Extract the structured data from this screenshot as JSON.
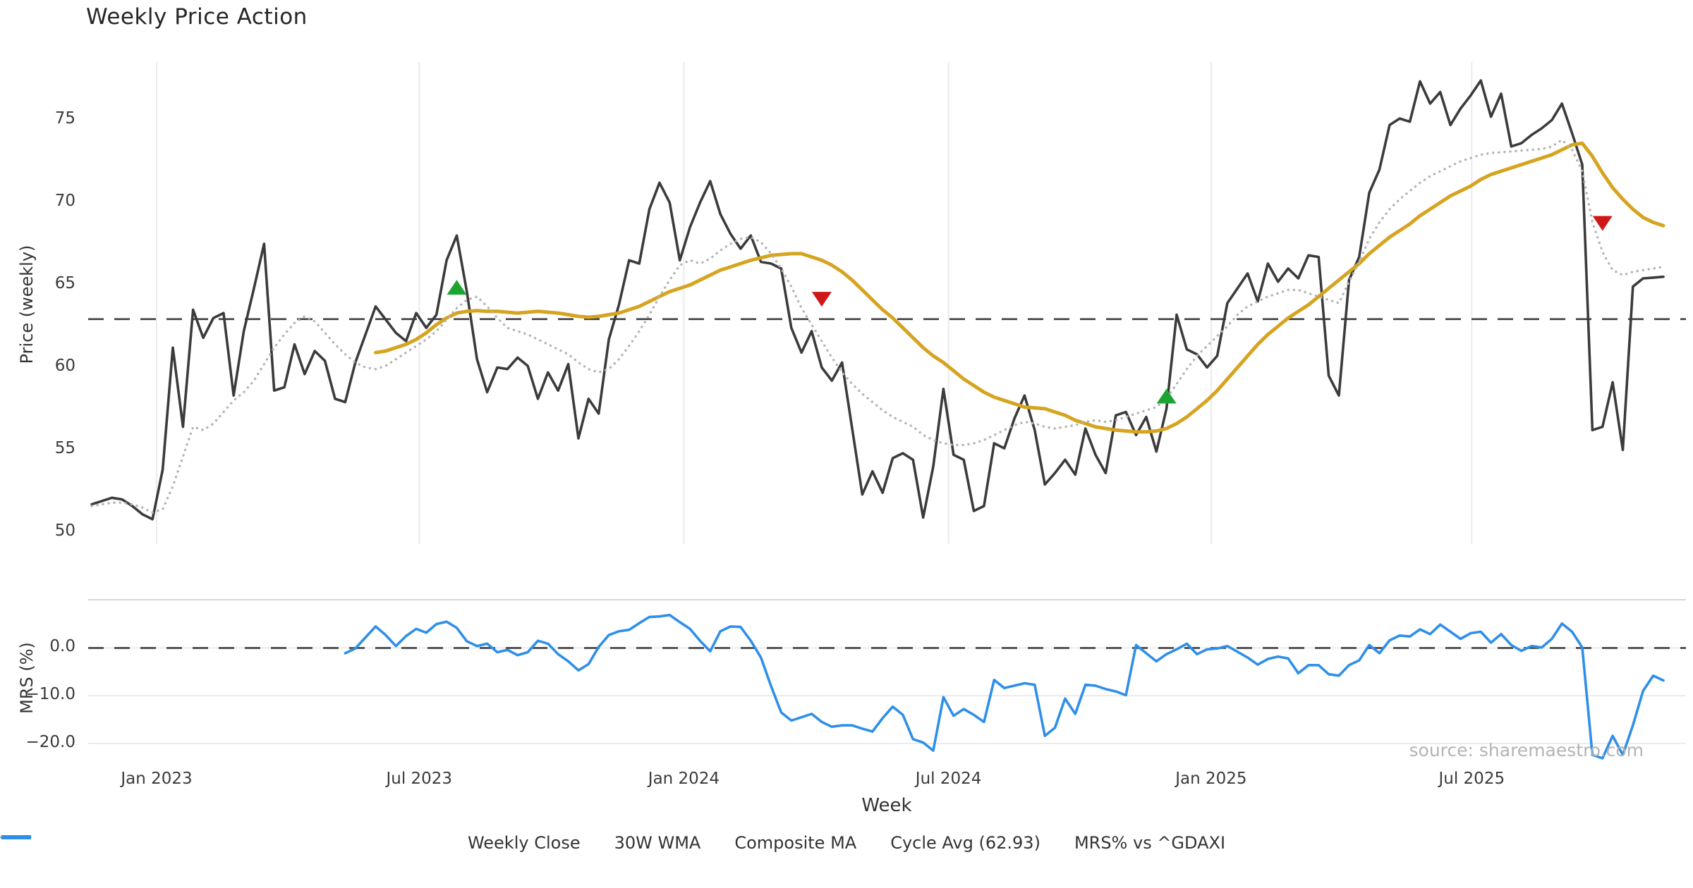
{
  "title": "Weekly Price Action",
  "source_text": "source: sharemaestro.com",
  "colors": {
    "weekly_close": "#3b3b3b",
    "wma_30w": "#d6a420",
    "composite_ma": "#b3b3b3",
    "cycle_avg": "#3f3f3f",
    "mrs": "#2f8fe8",
    "buy_marker": "#1ca532",
    "sell_marker": "#cf1717",
    "gridline": "#ebebeb",
    "spine": "#c9c9c9",
    "tick_text": "#3a3a3a"
  },
  "chart_data": {
    "type": "line",
    "title": "Weekly Price Action",
    "xlabel": "Week",
    "ylabel_top": "Price (weekly)",
    "ylabel_bottom": "MRS (%)",
    "grid": "vertical-top-panel, horizontal-bottom-panel",
    "legend_position": "bottom-center",
    "cycle_avg_value": 62.93,
    "top_panel": {
      "ylim": [
        49.5,
        78.5
      ],
      "yticks": [
        50,
        55,
        60,
        65,
        70,
        75
      ]
    },
    "bottom_panel": {
      "ylim": [
        -23.4,
        10.1
      ],
      "yticks": [
        0,
        -10,
        -20
      ],
      "ytick_labels": [
        "0.0",
        "−10.0",
        "−20.0"
      ],
      "zero_line": 0
    },
    "x_ticks": [
      {
        "week": 6.4,
        "label": "Jan 2023"
      },
      {
        "week": 32.3,
        "label": "Jul 2023"
      },
      {
        "week": 58.4,
        "label": "Jan 2024"
      },
      {
        "week": 84.5,
        "label": "Jul 2024"
      },
      {
        "week": 110.4,
        "label": "Jan 2025"
      },
      {
        "week": 136.1,
        "label": "Jul 2025"
      }
    ],
    "series": [
      {
        "name": "Weekly Close",
        "panel": "top",
        "style": "solid",
        "color_key": "weekly_close",
        "start_week": 0,
        "values": [
          51.7,
          51.9,
          52.1,
          52.0,
          51.6,
          51.1,
          50.8,
          53.8,
          61.2,
          56.4,
          63.5,
          61.8,
          63.0,
          63.3,
          58.3,
          62.2,
          64.8,
          67.5,
          58.6,
          58.8,
          61.4,
          59.6,
          61.0,
          60.4,
          58.1,
          57.9,
          60.3,
          62.0,
          63.7,
          62.9,
          62.1,
          61.6,
          63.3,
          62.4,
          63.2,
          66.5,
          68.0,
          64.6,
          60.5,
          58.5,
          60.0,
          59.9,
          60.6,
          60.1,
          58.1,
          59.7,
          58.6,
          60.2,
          55.7,
          58.1,
          57.2,
          61.7,
          63.8,
          66.5,
          66.3,
          69.6,
          71.2,
          70.0,
          66.5,
          68.5,
          70.0,
          71.3,
          69.3,
          68.1,
          67.2,
          68.0,
          66.4,
          66.3,
          66.0,
          62.4,
          60.9,
          62.2,
          60.0,
          59.2,
          60.3,
          56.3,
          52.3,
          53.7,
          52.4,
          54.5,
          54.8,
          54.4,
          50.9,
          54.0,
          58.7,
          54.7,
          54.4,
          51.3,
          51.6,
          55.4,
          55.1,
          56.9,
          58.3,
          56.2,
          52.9,
          53.6,
          54.4,
          53.5,
          56.3,
          54.7,
          53.6,
          57.1,
          57.3,
          55.9,
          57.0,
          54.9,
          57.5,
          63.2,
          61.1,
          60.8,
          60.0,
          60.7,
          63.9,
          64.8,
          65.7,
          64.0,
          66.3,
          65.2,
          66.0,
          65.4,
          66.8,
          66.7,
          59.5,
          58.3,
          65.3,
          66.7,
          70.6,
          72.0,
          74.7,
          75.1,
          74.9,
          77.35,
          76.0,
          76.7,
          74.7,
          75.7,
          76.5,
          77.4,
          75.2,
          76.6,
          73.4,
          73.6,
          74.1,
          74.5,
          75.0,
          76.0,
          74.2,
          72.3,
          56.2,
          56.4,
          59.1,
          55.0,
          64.9,
          65.4,
          65.45,
          65.5
        ]
      },
      {
        "name": "30W WMA",
        "panel": "top",
        "style": "solid-thick",
        "color_key": "wma_30w",
        "start_week": 28,
        "values": [
          60.9,
          61.0,
          61.2,
          61.4,
          61.7,
          62.1,
          62.6,
          63.0,
          63.3,
          63.4,
          63.45,
          63.4,
          63.4,
          63.35,
          63.3,
          63.35,
          63.4,
          63.35,
          63.3,
          63.2,
          63.1,
          63.05,
          63.1,
          63.2,
          63.3,
          63.5,
          63.7,
          64.0,
          64.3,
          64.6,
          64.8,
          65.0,
          65.3,
          65.6,
          65.9,
          66.1,
          66.3,
          66.5,
          66.65,
          66.8,
          66.85,
          66.9,
          66.9,
          66.7,
          66.5,
          66.2,
          65.8,
          65.3,
          64.7,
          64.1,
          63.5,
          63.0,
          62.4,
          61.8,
          61.2,
          60.7,
          60.3,
          59.8,
          59.3,
          58.9,
          58.5,
          58.2,
          58.0,
          57.8,
          57.6,
          57.55,
          57.5,
          57.3,
          57.1,
          56.8,
          56.6,
          56.4,
          56.3,
          56.2,
          56.15,
          56.1,
          56.1,
          56.15,
          56.3,
          56.6,
          57.0,
          57.5,
          58.0,
          58.6,
          59.3,
          60.0,
          60.7,
          61.4,
          62.0,
          62.5,
          63.0,
          63.4,
          63.8,
          64.3,
          64.8,
          65.3,
          65.8,
          66.3,
          66.9,
          67.4,
          67.9,
          68.3,
          68.7,
          69.2,
          69.6,
          70.0,
          70.4,
          70.7,
          71.0,
          71.4,
          71.7,
          71.9,
          72.1,
          72.3,
          72.5,
          72.7,
          72.9,
          73.2,
          73.5,
          73.6,
          72.8,
          71.8,
          70.9,
          70.2,
          69.6,
          69.1,
          68.8,
          68.6
        ]
      },
      {
        "name": "Composite MA",
        "panel": "top",
        "style": "dotted",
        "color_key": "composite_ma",
        "start_week": 0,
        "values": [
          51.6,
          51.7,
          51.8,
          51.8,
          51.7,
          51.5,
          51.2,
          51.4,
          52.8,
          54.6,
          56.4,
          56.2,
          56.6,
          57.3,
          58.0,
          58.5,
          59.2,
          60.2,
          61.2,
          62.0,
          62.7,
          63.1,
          62.8,
          62.1,
          61.4,
          60.8,
          60.3,
          60.0,
          59.9,
          60.1,
          60.5,
          60.9,
          61.3,
          61.7,
          62.2,
          62.9,
          63.6,
          64.1,
          64.3,
          63.7,
          63.0,
          62.4,
          62.2,
          62.0,
          61.7,
          61.4,
          61.1,
          60.8,
          60.3,
          59.9,
          59.7,
          59.9,
          60.5,
          61.3,
          62.2,
          63.2,
          64.3,
          65.3,
          66.2,
          66.5,
          66.3,
          66.6,
          67.1,
          67.5,
          67.8,
          67.9,
          67.6,
          66.9,
          66.0,
          64.9,
          63.6,
          62.6,
          61.6,
          60.6,
          59.7,
          59.0,
          58.4,
          57.9,
          57.4,
          57.0,
          56.7,
          56.4,
          55.9,
          55.6,
          55.4,
          55.3,
          55.3,
          55.4,
          55.6,
          55.9,
          56.2,
          56.5,
          56.7,
          56.6,
          56.4,
          56.3,
          56.4,
          56.5,
          56.7,
          56.8,
          56.7,
          56.8,
          57.0,
          57.2,
          57.4,
          57.6,
          58.1,
          59.0,
          59.9,
          60.7,
          61.3,
          61.9,
          62.5,
          63.2,
          63.7,
          64.0,
          64.3,
          64.5,
          64.7,
          64.7,
          64.5,
          64.3,
          64.1,
          63.9,
          65.2,
          66.4,
          67.8,
          68.8,
          69.6,
          70.2,
          70.7,
          71.2,
          71.6,
          71.9,
          72.2,
          72.5,
          72.7,
          72.9,
          73.0,
          73.05,
          73.1,
          73.15,
          73.2,
          73.25,
          73.4,
          73.8,
          73.2,
          71.9,
          68.8,
          67.0,
          65.9,
          65.6,
          65.8,
          65.9,
          66.0,
          66.1
        ]
      },
      {
        "name": "MRS% vs ^GDAXI",
        "panel": "bottom",
        "style": "solid",
        "color_key": "mrs",
        "start_week": 25,
        "values": [
          -1.1,
          -0.1,
          2.2,
          4.5,
          2.7,
          0.4,
          2.5,
          4.0,
          3.2,
          5.0,
          5.5,
          4.2,
          1.4,
          0.4,
          0.9,
          -0.9,
          -0.4,
          -1.5,
          -0.9,
          1.5,
          0.9,
          -1.3,
          -2.8,
          -4.7,
          -3.4,
          0.2,
          2.7,
          3.5,
          3.8,
          5.2,
          6.5,
          6.6,
          6.9,
          5.4,
          4.0,
          1.5,
          -0.7,
          3.5,
          4.5,
          4.4,
          1.5,
          -2.0,
          -8.0,
          -13.5,
          -15.2,
          -14.5,
          -13.8,
          -15.5,
          -16.5,
          -16.2,
          -16.2,
          -16.9,
          -17.5,
          -14.7,
          -12.3,
          -14.0,
          -19.1,
          -19.8,
          -21.5,
          -10.3,
          -14.2,
          -12.8,
          -14.0,
          -15.5,
          -6.7,
          -8.4,
          -7.9,
          -7.4,
          -7.7,
          -18.4,
          -16.7,
          -10.6,
          -13.8,
          -7.7,
          -7.9,
          -8.6,
          -9.1,
          -9.9,
          0.6,
          -1.1,
          -2.8,
          -1.3,
          -0.3,
          0.9,
          -1.3,
          -0.3,
          -0.1,
          0.4,
          -0.8,
          -2.0,
          -3.5,
          -2.3,
          -1.8,
          -2.2,
          -5.3,
          -3.6,
          -3.6,
          -5.5,
          -5.8,
          -3.6,
          -2.6,
          0.6,
          -1.1,
          1.6,
          2.6,
          2.4,
          3.9,
          2.9,
          4.9,
          3.4,
          1.9,
          3.1,
          3.4,
          1.1,
          2.9,
          0.6,
          -0.6,
          0.4,
          0.1,
          1.9,
          5.1,
          3.4,
          0.1,
          -22.4,
          -23.1,
          -18.4,
          -22.4,
          -16.2,
          -9.0,
          -5.8,
          -6.8
        ]
      }
    ],
    "signals": [
      {
        "type": "buy",
        "week": 36,
        "price": 64.8
      },
      {
        "type": "sell",
        "week": 72,
        "price": 64.2
      },
      {
        "type": "buy",
        "week": 106,
        "price": 58.2
      },
      {
        "type": "sell",
        "week": 149,
        "price": 68.8
      }
    ]
  },
  "legend": [
    {
      "label": "Weekly Close",
      "swatch": "solid",
      "color_key": "weekly_close"
    },
    {
      "label": "30W WMA",
      "swatch": "solid",
      "color_key": "wma_30w"
    },
    {
      "label": "Composite MA",
      "swatch": "dotted",
      "color_key": "composite_ma"
    },
    {
      "label": "Cycle Avg (62.93)",
      "swatch": "dashed",
      "color_key": "cycle_avg"
    },
    {
      "label": "MRS% vs ^GDAXI",
      "swatch": "solid",
      "color_key": "mrs"
    }
  ],
  "axis_labels": {
    "price": "Price (weekly)",
    "mrs": "MRS (%)",
    "x": "Week"
  }
}
